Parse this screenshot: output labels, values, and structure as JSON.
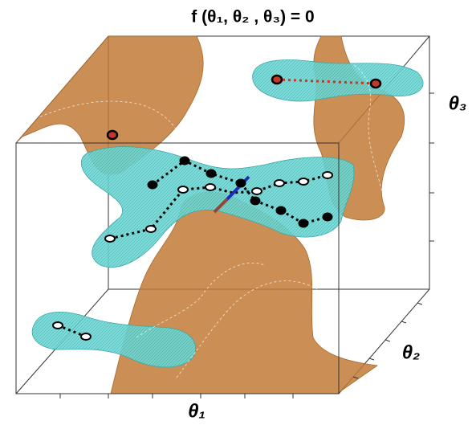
{
  "title": "f (θ₁, θ₂ , θ₃) = 0",
  "axes": {
    "x": "θ₁",
    "y": "θ₂",
    "z": "θ₃"
  }
}
